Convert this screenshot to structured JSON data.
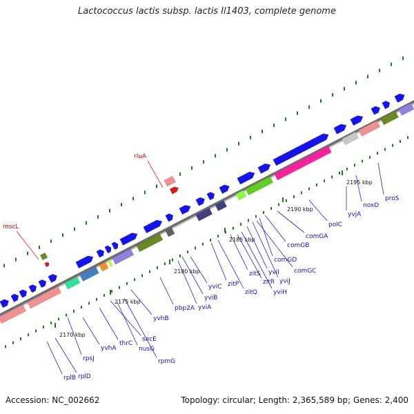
{
  "title": "Lactococcus lactis subsp. lactis Il1403, complete genome",
  "footer": {
    "accession": "Accession: NC_002662",
    "summary": "Topology: circular; Length: 2,365,589 bp; Genes: 2,400"
  },
  "colors": {
    "backbone": "#8c8c8c",
    "cds": "#1414f0",
    "trna": "#e01818",
    "trna_label": "#d00000",
    "tick": "#1a7a1a",
    "label_line": "#2020e0",
    "rrna": "#f09090"
  },
  "scale_labels": [
    "2170 kbp",
    "2175 kbp",
    "2180 kbp",
    "2185 kbp",
    "2190 kbp",
    "2195 kbp"
  ],
  "gene_labels": [
    "rplB",
    "rplD",
    "rpsJ",
    "yvhA",
    "thrC",
    "secE",
    "nusG",
    "rpmG",
    "yvhB",
    "pbp2A",
    "yviA",
    "yviB",
    "yviC",
    "zitP",
    "zitQ",
    "zitS",
    "zitR",
    "yviH",
    "yviI",
    "yviJ",
    "comGC",
    "comGD",
    "comGB",
    "comGA",
    "polC",
    "yvjA",
    "noxD",
    "proS"
  ],
  "rna_labels": [
    "mscL",
    "rluA"
  ]
}
